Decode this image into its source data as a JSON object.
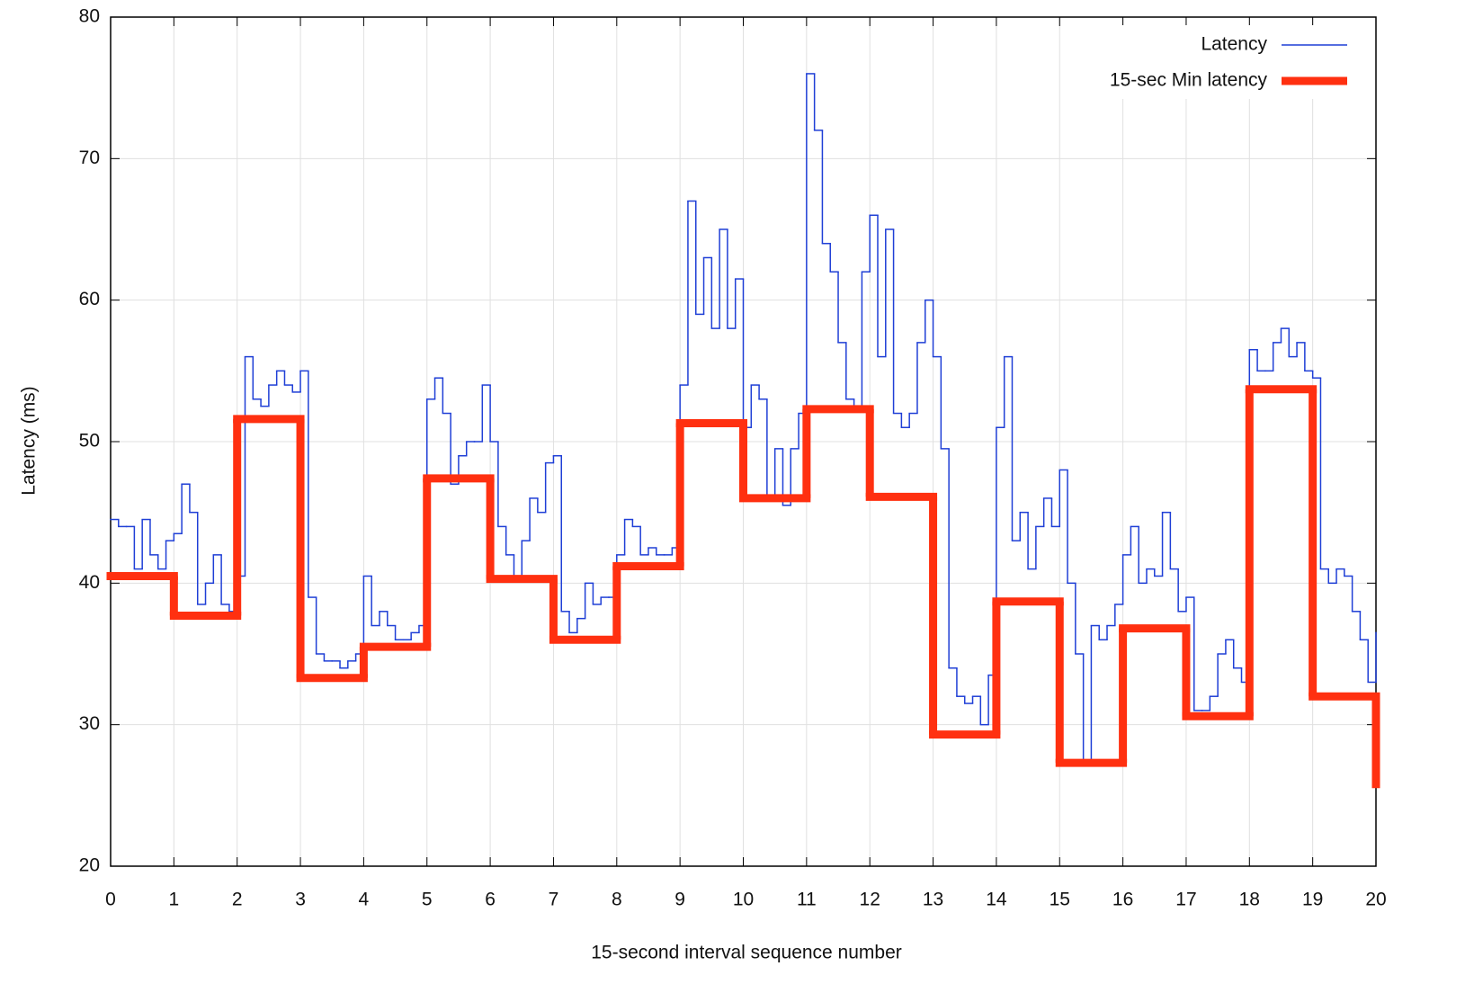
{
  "chart_data": {
    "type": "line",
    "step": "post",
    "x_label": "15-second interval sequence number",
    "y_label": "Latency (ms)",
    "xlim": [
      0,
      20
    ],
    "ylim": [
      20,
      80
    ],
    "xticks": [
      0,
      1,
      2,
      3,
      4,
      5,
      6,
      7,
      8,
      9,
      10,
      11,
      12,
      13,
      14,
      15,
      16,
      17,
      18,
      19,
      20
    ],
    "yticks": [
      20,
      30,
      40,
      50,
      60,
      70,
      80
    ],
    "grid": true,
    "legend": "top-right",
    "series": [
      {
        "name": "Latency",
        "color": "#1f3fd6",
        "width": 1.5,
        "x": [
          0,
          0.125,
          0.25,
          0.375,
          0.5,
          0.625,
          0.75,
          0.875,
          1,
          1.125,
          1.25,
          1.375,
          1.5,
          1.625,
          1.75,
          1.875,
          2,
          2.125,
          2.25,
          2.375,
          2.5,
          2.625,
          2.75,
          2.875,
          3,
          3.125,
          3.25,
          3.375,
          3.5,
          3.625,
          3.75,
          3.875,
          4,
          4.125,
          4.25,
          4.375,
          4.5,
          4.625,
          4.75,
          4.875,
          5,
          5.125,
          5.25,
          5.375,
          5.5,
          5.625,
          5.75,
          5.875,
          6,
          6.125,
          6.25,
          6.375,
          6.5,
          6.625,
          6.75,
          6.875,
          7,
          7.125,
          7.25,
          7.375,
          7.5,
          7.625,
          7.75,
          7.875,
          8,
          8.125,
          8.25,
          8.375,
          8.5,
          8.625,
          8.75,
          8.875,
          9,
          9.125,
          9.25,
          9.375,
          9.5,
          9.625,
          9.75,
          9.875,
          10,
          10.125,
          10.25,
          10.375,
          10.5,
          10.625,
          10.75,
          10.875,
          11,
          11.125,
          11.25,
          11.375,
          11.5,
          11.625,
          11.75,
          11.875,
          12,
          12.125,
          12.25,
          12.375,
          12.5,
          12.625,
          12.75,
          12.875,
          13,
          13.125,
          13.25,
          13.375,
          13.5,
          13.625,
          13.75,
          13.875,
          14,
          14.125,
          14.25,
          14.375,
          14.5,
          14.625,
          14.75,
          14.875,
          15,
          15.125,
          15.25,
          15.375,
          15.5,
          15.625,
          15.75,
          15.875,
          16,
          16.125,
          16.25,
          16.375,
          16.5,
          16.625,
          16.75,
          16.875,
          17,
          17.125,
          17.25,
          17.375,
          17.5,
          17.625,
          17.75,
          17.875,
          18,
          18.125,
          18.25,
          18.375,
          18.5,
          18.625,
          18.75,
          18.875,
          19,
          19.125,
          19.25,
          19.375,
          19.5,
          19.625,
          19.75,
          19.875,
          20
        ],
        "values": [
          44.5,
          44,
          44,
          41,
          44.5,
          42,
          41,
          43,
          43.5,
          47,
          45,
          38.5,
          40,
          42,
          38.5,
          38,
          40.5,
          56,
          53,
          52.5,
          54,
          55,
          54,
          53.5,
          55,
          39,
          35,
          34.5,
          34.5,
          34,
          34.5,
          35,
          40.5,
          37,
          38,
          37,
          36,
          36,
          36.5,
          37,
          53,
          54.5,
          52,
          47,
          49,
          50,
          50,
          54,
          50,
          44,
          42,
          40.5,
          43,
          46,
          45,
          48.5,
          49,
          38,
          36.5,
          37.5,
          40,
          38.5,
          39,
          39,
          42,
          44.5,
          44,
          42,
          42.5,
          42,
          42,
          42.5,
          54,
          67,
          59,
          63,
          58,
          65,
          58,
          61.5,
          51,
          54,
          53,
          46,
          49.5,
          45.5,
          49.5,
          52,
          76,
          72,
          64,
          62,
          57,
          53,
          52.5,
          62,
          66,
          56,
          65,
          52,
          51,
          52,
          57,
          60,
          56,
          49.5,
          34,
          32,
          31.5,
          32,
          30,
          33.5,
          51,
          56,
          43,
          45,
          41,
          44,
          46,
          44,
          48,
          40,
          35,
          27.5,
          37,
          36,
          37,
          38.5,
          42,
          44,
          40,
          41,
          40.5,
          45,
          41,
          38,
          39,
          31,
          31,
          32,
          35,
          36,
          34,
          33,
          56.5,
          55,
          55,
          57,
          58,
          56,
          57,
          55,
          54.5,
          41,
          40,
          41,
          40.5,
          38,
          36,
          33,
          36.5
        ]
      },
      {
        "name": "15-sec Min latency",
        "color": "#ff3010",
        "width": 9,
        "x": [
          0,
          1,
          2,
          3,
          4,
          5,
          6,
          7,
          8,
          9,
          10,
          11,
          12,
          13,
          14,
          15,
          16,
          17,
          18,
          19,
          20
        ],
        "values": [
          40.5,
          37.7,
          51.6,
          33.3,
          35.5,
          47.4,
          40.3,
          36.0,
          41.2,
          51.3,
          46.0,
          52.3,
          46.1,
          29.3,
          38.7,
          27.3,
          36.8,
          30.6,
          53.7,
          32.0,
          25.8
        ]
      }
    ]
  }
}
